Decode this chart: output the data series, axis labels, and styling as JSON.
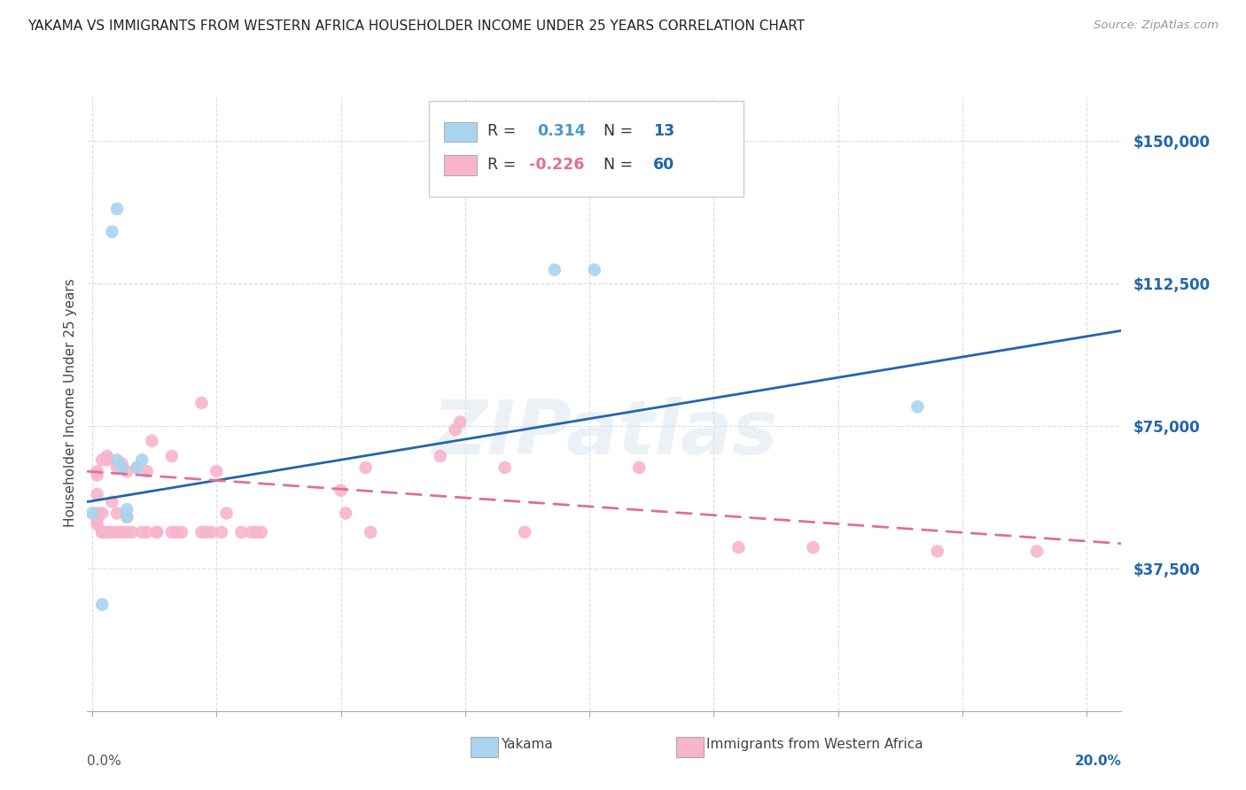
{
  "title": "YAKAMA VS IMMIGRANTS FROM WESTERN AFRICA HOUSEHOLDER INCOME UNDER 25 YEARS CORRELATION CHART",
  "source": "Source: ZipAtlas.com",
  "ylabel": "Householder Income Under 25 years",
  "ytick_labels": [
    "$37,500",
    "$75,000",
    "$112,500",
    "$150,000"
  ],
  "ytick_values": [
    37500,
    75000,
    112500,
    150000
  ],
  "ymin": 0,
  "ymax": 162000,
  "xmin": -0.001,
  "xmax": 0.207,
  "blue_dot_color": "#a8d4ef",
  "pink_dot_color": "#f8b4cc",
  "blue_line_color": "#2166ac",
  "pink_line_color": "#e07090",
  "background_color": "#ffffff",
  "title_color": "#222222",
  "title_fontsize": 11,
  "legend_r_color": "#4499cc",
  "legend_n_color": "#2166ac",
  "yakama_points": [
    [
      0.005,
      132000
    ],
    [
      0.004,
      126000
    ],
    [
      0.0,
      52000
    ],
    [
      0.005,
      66000
    ],
    [
      0.006,
      64000
    ],
    [
      0.009,
      64000
    ],
    [
      0.01,
      66000
    ],
    [
      0.007,
      53000
    ],
    [
      0.007,
      51000
    ],
    [
      0.101,
      116000
    ],
    [
      0.093,
      116000
    ],
    [
      0.166,
      80000
    ],
    [
      0.002,
      28000
    ]
  ],
  "immigrant_points": [
    [
      0.001,
      63000
    ],
    [
      0.001,
      62000
    ],
    [
      0.001,
      57000
    ],
    [
      0.002,
      66000
    ],
    [
      0.003,
      67000
    ],
    [
      0.003,
      66000
    ],
    [
      0.001,
      52000
    ],
    [
      0.002,
      52000
    ],
    [
      0.001,
      50000
    ],
    [
      0.001,
      49000
    ],
    [
      0.002,
      47000
    ],
    [
      0.002,
      47000
    ],
    [
      0.003,
      47000
    ],
    [
      0.003,
      47000
    ],
    [
      0.004,
      47000
    ],
    [
      0.004,
      55000
    ],
    [
      0.005,
      64000
    ],
    [
      0.005,
      52000
    ],
    [
      0.005,
      47000
    ],
    [
      0.006,
      65000
    ],
    [
      0.006,
      47000
    ],
    [
      0.007,
      63000
    ],
    [
      0.007,
      51000
    ],
    [
      0.007,
      47000
    ],
    [
      0.008,
      47000
    ],
    [
      0.009,
      64000
    ],
    [
      0.01,
      47000
    ],
    [
      0.011,
      63000
    ],
    [
      0.011,
      47000
    ],
    [
      0.012,
      71000
    ],
    [
      0.013,
      47000
    ],
    [
      0.013,
      47000
    ],
    [
      0.016,
      67000
    ],
    [
      0.016,
      47000
    ],
    [
      0.017,
      47000
    ],
    [
      0.018,
      47000
    ],
    [
      0.022,
      81000
    ],
    [
      0.022,
      47000
    ],
    [
      0.023,
      47000
    ],
    [
      0.024,
      47000
    ],
    [
      0.025,
      63000
    ],
    [
      0.026,
      47000
    ],
    [
      0.027,
      52000
    ],
    [
      0.03,
      47000
    ],
    [
      0.032,
      47000
    ],
    [
      0.033,
      47000
    ],
    [
      0.034,
      47000
    ],
    [
      0.05,
      58000
    ],
    [
      0.051,
      52000
    ],
    [
      0.055,
      64000
    ],
    [
      0.056,
      47000
    ],
    [
      0.07,
      67000
    ],
    [
      0.073,
      74000
    ],
    [
      0.074,
      76000
    ],
    [
      0.083,
      64000
    ],
    [
      0.087,
      47000
    ],
    [
      0.11,
      64000
    ],
    [
      0.13,
      43000
    ],
    [
      0.145,
      43000
    ],
    [
      0.17,
      42000
    ],
    [
      0.19,
      42000
    ]
  ],
  "blue_trendline_x": [
    -0.001,
    0.207
  ],
  "blue_trendline_y": [
    55000,
    100000
  ],
  "pink_trendline_x": [
    -0.001,
    0.207
  ],
  "pink_trendline_y": [
    63000,
    44000
  ],
  "watermark": "ZIPatlas",
  "grid_color": "#dddddd",
  "xtick_positions": [
    0.0,
    0.025,
    0.05,
    0.075,
    0.1,
    0.125,
    0.15,
    0.175,
    0.2
  ]
}
